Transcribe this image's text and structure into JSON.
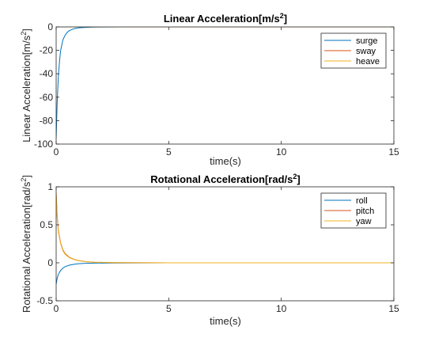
{
  "chart_data": [
    {
      "type": "line",
      "title": "Linear Acceleration[m/s",
      "title_sup": "2",
      "title_suffix": "]",
      "xlabel": "time(s)",
      "ylabel": "Linear Acceleration[m/s",
      "ylabel_sup": "2",
      "ylabel_suffix": "]",
      "xlim": [
        0,
        15
      ],
      "ylim": [
        -100,
        0
      ],
      "xticks": [
        "0",
        "5",
        "10",
        "15"
      ],
      "yticks": [
        "0",
        "-20",
        "-40",
        "-60",
        "-80",
        "-100"
      ],
      "grid": false,
      "legend_position": "top-right",
      "series": [
        {
          "name": "surge",
          "color": "#0072bd",
          "x": [
            0,
            0.05,
            0.1,
            0.15,
            0.2,
            0.3,
            0.4,
            0.5,
            0.6,
            0.8,
            1.0,
            1.3,
            1.6,
            2.0,
            3.0,
            5.0,
            10.0,
            15.0
          ],
          "values": [
            -95,
            -62,
            -42,
            -29,
            -20,
            -11,
            -7,
            -4.5,
            -3,
            -1.5,
            -0.8,
            -0.4,
            -0.2,
            -0.1,
            0,
            0,
            0,
            0
          ]
        },
        {
          "name": "sway",
          "color": "#d95319",
          "x": [
            0,
            15
          ],
          "values": [
            0,
            0
          ]
        },
        {
          "name": "heave",
          "color": "#edb120",
          "x": [
            0,
            15
          ],
          "values": [
            0,
            0
          ]
        }
      ]
    },
    {
      "type": "line",
      "title": "Rotational Acceleration[rad/s",
      "title_sup": "2",
      "title_suffix": "]",
      "xlabel": "time(s)",
      "ylabel": "Rotational Acceleration[rad/s",
      "ylabel_sup": "2",
      "ylabel_suffix": "]",
      "xlim": [
        0,
        15
      ],
      "ylim": [
        -0.5,
        1
      ],
      "xticks": [
        "0",
        "5",
        "10",
        "15"
      ],
      "yticks": [
        "1",
        "0.5",
        "0",
        "-0.5"
      ],
      "ytick_values": [
        1,
        0.5,
        0,
        -0.5
      ],
      "grid": false,
      "legend_position": "top-right",
      "series": [
        {
          "name": "roll",
          "color": "#0072bd",
          "x": [
            0,
            0.05,
            0.1,
            0.2,
            0.3,
            0.4,
            0.6,
            0.8,
            1.0,
            1.3,
            1.7,
            2.5,
            5.0,
            10.0,
            15.0
          ],
          "values": [
            -0.28,
            -0.2,
            -0.15,
            -0.1,
            -0.07,
            -0.05,
            -0.03,
            -0.02,
            -0.012,
            -0.007,
            -0.004,
            -0.002,
            0,
            0,
            0
          ]
        },
        {
          "name": "pitch",
          "color": "#d95319",
          "x": [
            0,
            0.05,
            0.1,
            0.2,
            0.3,
            0.4,
            0.6,
            0.8,
            1.0,
            1.3,
            1.7,
            2.5,
            5.0,
            10.0,
            15.0
          ],
          "values": [
            0.92,
            0.6,
            0.42,
            0.26,
            0.17,
            0.12,
            0.07,
            0.045,
            0.03,
            0.016,
            0.008,
            0.003,
            0,
            0,
            0
          ]
        },
        {
          "name": "yaw",
          "color": "#edb120",
          "x": [
            0,
            0.05,
            0.1,
            0.2,
            0.3,
            0.4,
            0.6,
            0.8,
            1.0,
            1.3,
            1.7,
            2.5,
            5.0,
            10.0,
            15.0
          ],
          "values": [
            0.9,
            0.58,
            0.4,
            0.25,
            0.16,
            0.11,
            0.065,
            0.042,
            0.028,
            0.015,
            0.007,
            0.002,
            0,
            0,
            0
          ]
        }
      ]
    }
  ]
}
